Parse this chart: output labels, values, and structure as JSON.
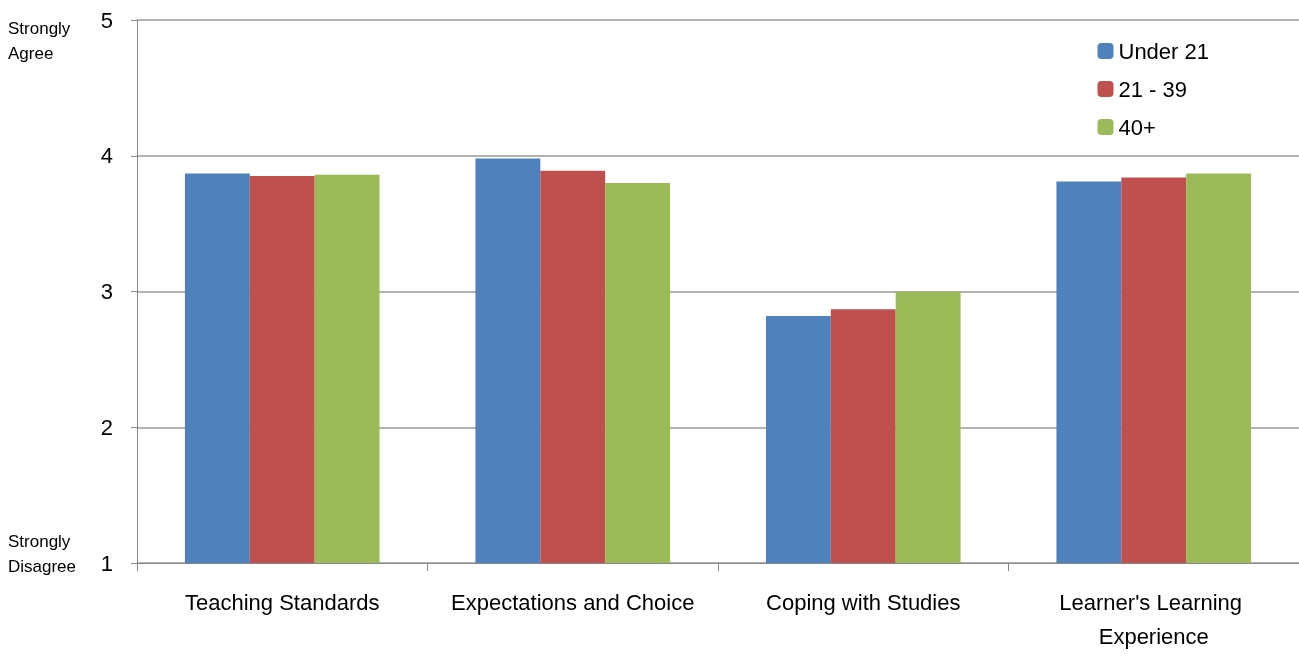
{
  "chart_data": {
    "type": "bar",
    "categories": [
      "Teaching Standards",
      "Expectations and Choice",
      "Coping with Studies",
      "Learner's Learning Experience"
    ],
    "series": [
      {
        "name": "Under 21",
        "color": "#4f81bd",
        "values": [
          3.87,
          3.98,
          2.82,
          3.81
        ]
      },
      {
        "name": "21 - 39",
        "color": "#c0504d",
        "values": [
          3.85,
          3.89,
          2.87,
          3.84
        ]
      },
      {
        "name": "40+",
        "color": "#9bbb59",
        "values": [
          3.86,
          3.8,
          3.0,
          3.87
        ]
      }
    ],
    "ylim": [
      1,
      5
    ],
    "yticks": [
      1,
      2,
      3,
      4,
      5
    ],
    "grid": "y",
    "legend": "top right",
    "annotations": [
      "Strongly Agree",
      "Strongly Disagree"
    ]
  }
}
